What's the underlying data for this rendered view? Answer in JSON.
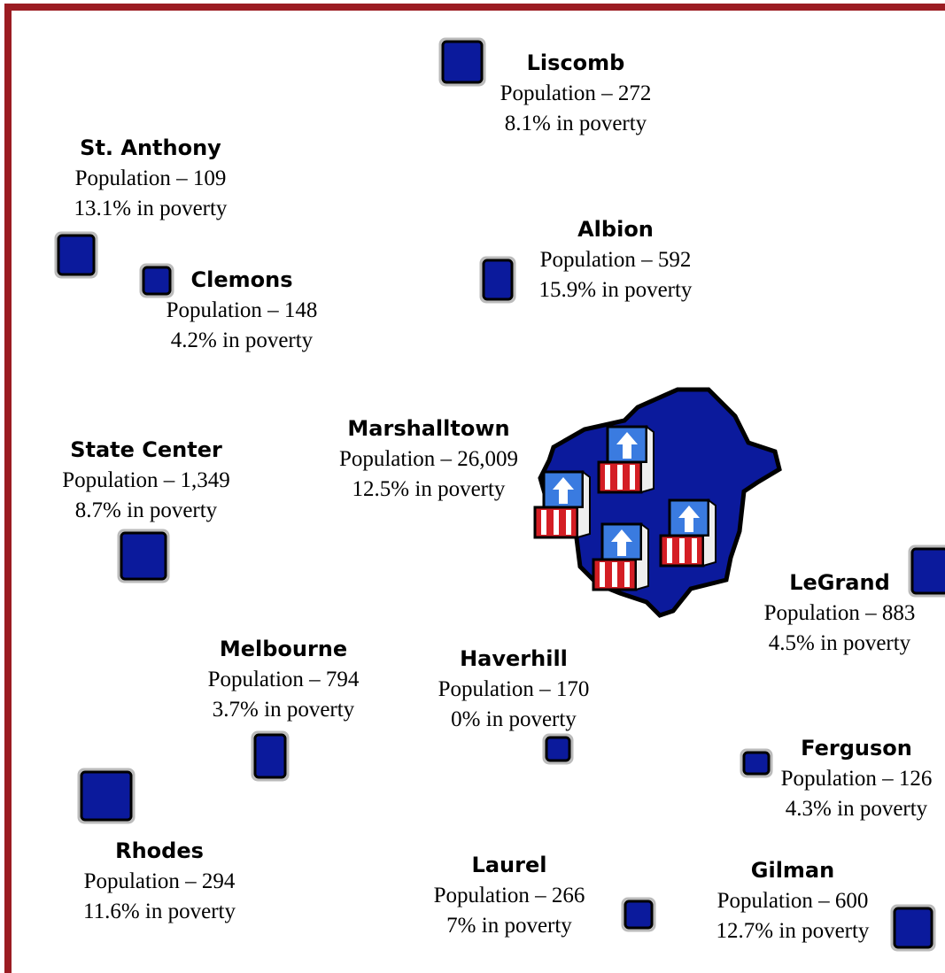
{
  "towns": [
    {
      "name": "Liscomb",
      "population": "Population – 272",
      "poverty": "8.1% in poverty"
    },
    {
      "name": "St. Anthony",
      "population": "Population – 109",
      "poverty": "13.1% in poverty"
    },
    {
      "name": "Clemons",
      "population": "Population – 148",
      "poverty": "4.2% in poverty"
    },
    {
      "name": "Albion",
      "population": "Population – 592",
      "poverty": "15.9% in poverty"
    },
    {
      "name": "Marshalltown",
      "population": "Population – 26,009",
      "poverty": "12.5% in poverty"
    },
    {
      "name": "State Center",
      "population": "Population – 1,349",
      "poverty": "8.7% in poverty"
    },
    {
      "name": "LeGrand",
      "population": "Population – 883",
      "poverty": "4.5% in poverty"
    },
    {
      "name": "Melbourne",
      "population": "Population – 794",
      "poverty": "3.7% in poverty"
    },
    {
      "name": "Haverhill",
      "population": "Population – 170",
      "poverty": "0% in poverty"
    },
    {
      "name": "Ferguson",
      "population": "Population – 126",
      "poverty": "4.3% in poverty"
    },
    {
      "name": "Rhodes",
      "population": "Population – 294",
      "poverty": "11.6% in poverty"
    },
    {
      "name": "Laurel",
      "population": "Population – 266",
      "poverty": "7% in poverty"
    },
    {
      "name": "Gilman",
      "population": "Population – 600",
      "poverty": "12.7% in poverty"
    }
  ]
}
